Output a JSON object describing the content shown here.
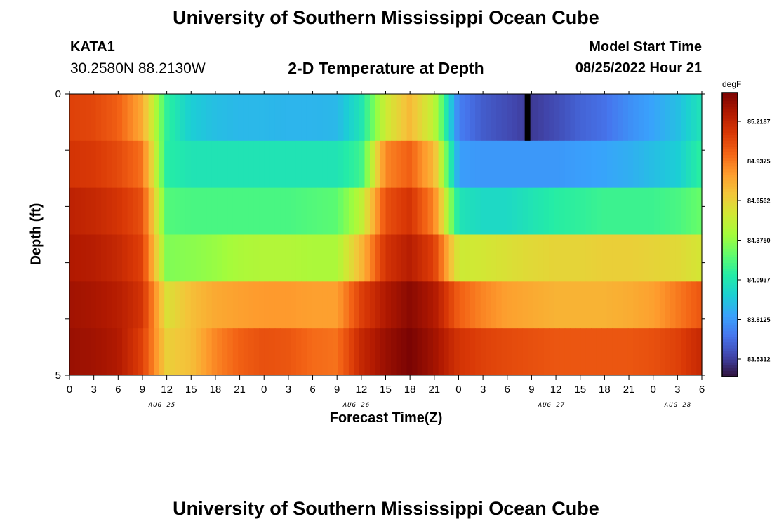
{
  "header": {
    "title": "University of Southern Mississippi Ocean Cube",
    "station_id": "KATA1",
    "coordinates": "30.2580N  88.2130W",
    "subtitle": "2-D Temperature at Depth",
    "model_start_label": "Model Start Time",
    "model_start_value": "08/25/2022 Hour 21"
  },
  "footer": {
    "title": "University of Southern Mississippi Ocean Cube"
  },
  "colorbar": {
    "unit": "degF",
    "ticks": [
      "85.2187",
      "84.9375",
      "84.6562",
      "84.3750",
      "84.0937",
      "83.8125",
      "83.5312"
    ],
    "colors": [
      "#30123b",
      "#4145ab",
      "#4675ed",
      "#39a2fc",
      "#1bcfd4",
      "#24eca6",
      "#61fc6c",
      "#a4fc3b",
      "#d1e834",
      "#f3c63a",
      "#fe9b2d",
      "#f36315",
      "#d93806",
      "#b11901",
      "#7a0403"
    ],
    "range": [
      83.39,
      85.36
    ]
  },
  "chart_data": {
    "type": "heatmap",
    "title": "2-D Temperature at Depth",
    "xlabel": "Forecast Time(Z)",
    "ylabel": "Depth (ft)",
    "x_tick_labels": [
      "0",
      "3",
      "6",
      "9",
      "12",
      "15",
      "18",
      "21",
      "0",
      "3",
      "6",
      "9",
      "12",
      "15",
      "18",
      "21",
      "0",
      "3",
      "6",
      "9",
      "12",
      "15",
      "18",
      "21",
      "0",
      "3",
      "6"
    ],
    "date_labels": [
      "AUG 25",
      "AUG 26",
      "AUG 27",
      "AUG 28"
    ],
    "y_tick_labels": [
      "0",
      "5"
    ],
    "ylim": [
      0,
      5
    ],
    "depth_levels": [
      0,
      1,
      2,
      3,
      4,
      5
    ],
    "time_hours": [
      0,
      3,
      6,
      9,
      12,
      15,
      18,
      21,
      24,
      27,
      30,
      33,
      36,
      39,
      42,
      45,
      48,
      51,
      54,
      57,
      60,
      63,
      66,
      69,
      72,
      75,
      78
    ],
    "values": [
      [
        85.05,
        85.03,
        84.95,
        84.75,
        84.12,
        83.95,
        83.9,
        83.88,
        83.88,
        83.87,
        83.87,
        83.88,
        84.05,
        84.5,
        84.7,
        84.45,
        83.7,
        83.6,
        83.55,
        83.5,
        83.55,
        83.62,
        83.66,
        83.75,
        83.82,
        83.9,
        84.05
      ],
      [
        85.1,
        85.08,
        85.02,
        84.9,
        84.1,
        84.05,
        84.05,
        84.05,
        84.05,
        84.05,
        84.05,
        84.05,
        84.15,
        84.85,
        84.95,
        84.7,
        83.8,
        83.78,
        83.78,
        83.78,
        83.78,
        83.8,
        83.82,
        83.85,
        83.9,
        83.95,
        84.12
      ],
      [
        85.18,
        85.15,
        85.1,
        85.0,
        84.2,
        84.18,
        84.18,
        84.18,
        84.18,
        84.18,
        84.2,
        84.22,
        84.45,
        85.0,
        85.1,
        84.85,
        84.05,
        84.0,
        84.0,
        84.05,
        84.1,
        84.12,
        84.15,
        84.15,
        84.15,
        84.18,
        84.25
      ],
      [
        85.22,
        85.2,
        85.15,
        85.05,
        84.3,
        84.32,
        84.35,
        84.4,
        84.42,
        84.42,
        84.4,
        84.4,
        84.7,
        85.1,
        85.2,
        85.05,
        84.5,
        84.52,
        84.55,
        84.58,
        84.6,
        84.6,
        84.62,
        84.62,
        84.6,
        84.58,
        84.52
      ],
      [
        85.26,
        85.24,
        85.2,
        85.1,
        84.55,
        84.68,
        84.75,
        84.78,
        84.8,
        84.8,
        84.78,
        84.78,
        85.05,
        85.22,
        85.32,
        85.22,
        84.95,
        84.85,
        84.78,
        84.75,
        84.72,
        84.72,
        84.72,
        84.74,
        84.78,
        84.88,
        84.98
      ],
      [
        85.28,
        85.26,
        85.22,
        85.05,
        84.62,
        84.68,
        84.85,
        84.95,
        85.0,
        84.98,
        84.92,
        84.9,
        85.15,
        85.28,
        85.36,
        85.26,
        85.1,
        85.05,
        85.02,
        85.0,
        84.98,
        84.98,
        84.98,
        84.98,
        85.0,
        85.05,
        85.15
      ]
    ],
    "missing_cell": {
      "depth": 0,
      "time_hour": 56.5
    }
  }
}
